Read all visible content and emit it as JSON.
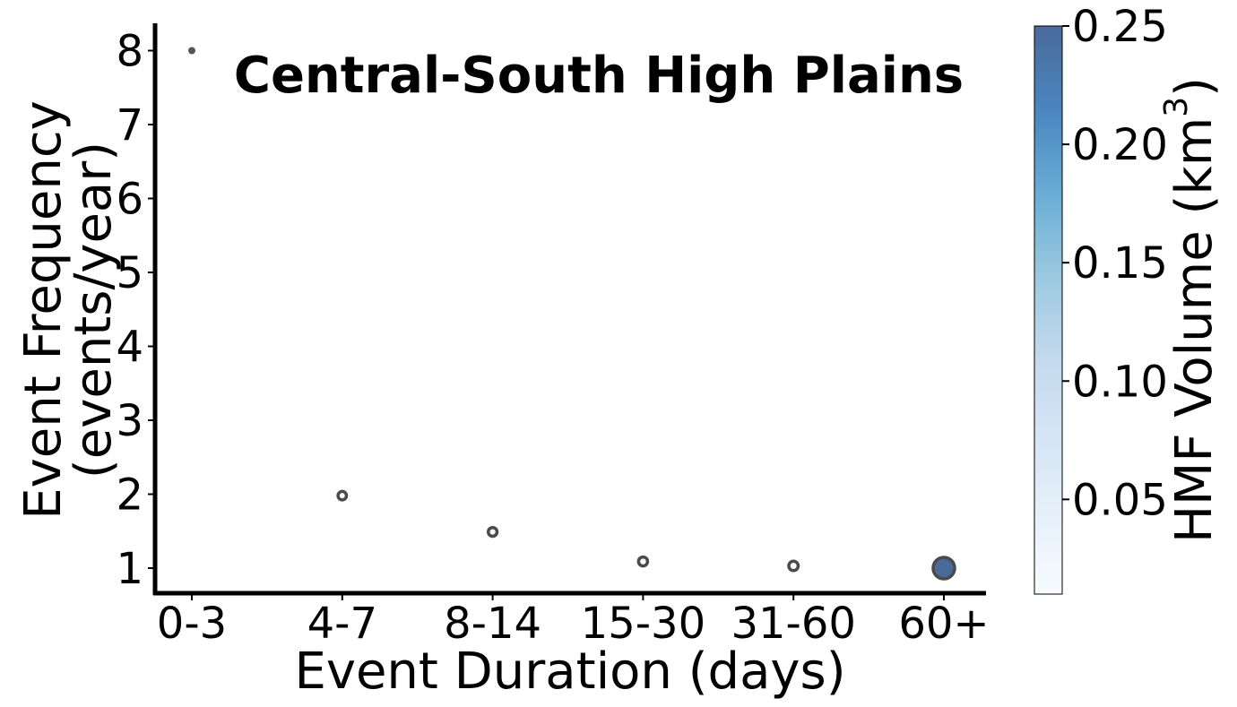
{
  "chart_data": {
    "type": "scatter",
    "title": "Central-South High Plains",
    "xlabel": "Event Duration (days)",
    "ylabel_line1": "Event Frequency",
    "ylabel_line2": "(events/year)",
    "categories": [
      "0-3",
      "4-7",
      "8-14",
      "15-30",
      "31-60",
      "60+"
    ],
    "y_ticks": [
      "1",
      "2",
      "3",
      "4",
      "5",
      "6",
      "7",
      "8"
    ],
    "ylim": [
      0.65,
      8.4
    ],
    "points": [
      {
        "category": "0-3",
        "frequency": 8.0,
        "volume": 0.0
      },
      {
        "category": "4-7",
        "frequency": 1.98,
        "volume": 0.002
      },
      {
        "category": "8-14",
        "frequency": 1.49,
        "volume": 0.003
      },
      {
        "category": "15-30",
        "frequency": 1.09,
        "volume": 0.004
      },
      {
        "category": "31-60",
        "frequency": 1.03,
        "volume": 0.006
      },
      {
        "category": "60+",
        "frequency": 1.0,
        "volume": 0.25
      }
    ],
    "colorbar": {
      "label_prefix": "HMF Volume (km",
      "label_superscript": "3",
      "label_suffix": ")",
      "min": 0.01,
      "max": 0.25,
      "ticks": [
        "0.05",
        "0.10",
        "0.15",
        "0.20",
        "0.25"
      ],
      "colormap": [
        "#f7fbff",
        "#deebf7",
        "#c6dbef",
        "#9ecae1",
        "#6baed6",
        "#4292c6",
        "#2171b5"
      ],
      "top_color": "#4a6a9a"
    },
    "grid": false,
    "legend": "none"
  }
}
